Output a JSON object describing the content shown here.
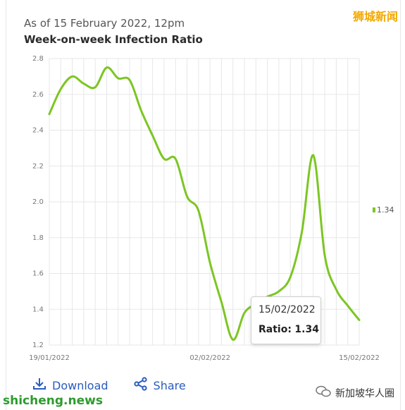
{
  "header": {
    "subtitle": "As of 15 February 2022, 12pm",
    "title": "Week-on-week Infection Ratio"
  },
  "legend": {
    "label": "1.34",
    "color": "#7cc622"
  },
  "tooltip": {
    "date": "15/02/2022",
    "ratio_label": "Ratio:",
    "ratio_value": "1.34"
  },
  "actions": {
    "download_label": "Download",
    "share_label": "Share"
  },
  "watermarks": {
    "top_right": "狮城新闻",
    "bottom_left": "shicheng.news",
    "wechat_name": "新加坡华人圈"
  },
  "chart_data": {
    "type": "line",
    "x": [
      "19/01/2022",
      "20/01/2022",
      "21/01/2022",
      "22/01/2022",
      "23/01/2022",
      "24/01/2022",
      "25/01/2022",
      "26/01/2022",
      "27/01/2022",
      "28/01/2022",
      "29/01/2022",
      "30/01/2022",
      "31/01/2022",
      "01/02/2022",
      "02/02/2022",
      "03/02/2022",
      "04/02/2022",
      "05/02/2022",
      "06/02/2022",
      "07/02/2022",
      "08/02/2022",
      "09/02/2022",
      "10/02/2022",
      "11/02/2022",
      "12/02/2022",
      "13/02/2022",
      "14/02/2022",
      "15/02/2022"
    ],
    "values": [
      2.49,
      2.63,
      2.7,
      2.66,
      2.64,
      2.75,
      2.69,
      2.68,
      2.51,
      2.37,
      2.24,
      2.24,
      2.03,
      1.95,
      1.66,
      1.44,
      1.23,
      1.38,
      1.43,
      1.47,
      1.5,
      1.58,
      1.83,
      2.26,
      1.7,
      1.51,
      1.42,
      1.34
    ],
    "x_tick_labels": [
      "19/01/2022",
      "02/02/2022",
      "15/02/2022"
    ],
    "y_ticks": [
      "1.2",
      "1.4",
      "1.6",
      "1.8",
      "2.0",
      "2.2",
      "2.4",
      "2.6",
      "2.8"
    ],
    "ylim": [
      1.2,
      2.8
    ],
    "grid": true,
    "color": "#7cc622"
  }
}
